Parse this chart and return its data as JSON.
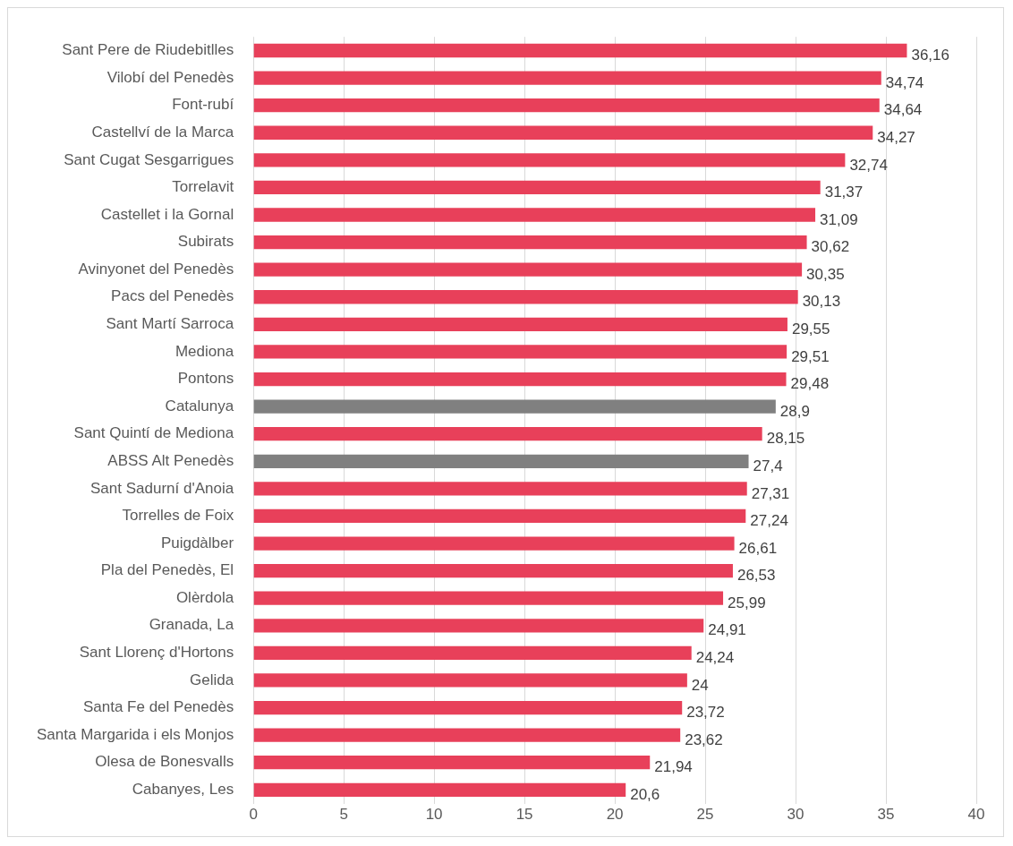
{
  "chart_data": {
    "type": "bar",
    "orientation": "horizontal",
    "categories": [
      "Sant Pere de Riudebitlles",
      "Vilobí del Penedès",
      "Font-rubí",
      "Castellví de la Marca",
      "Sant Cugat Sesgarrigues",
      "Torrelavit",
      "Castellet i la Gornal",
      "Subirats",
      "Avinyonet del Penedès",
      "Pacs del Penedès",
      "Sant Martí Sarroca",
      "Mediona",
      "Pontons",
      "Catalunya",
      "Sant Quintí de Mediona",
      "ABSS Alt Penedès",
      "Sant Sadurní d'Anoia",
      "Torrelles de Foix",
      "Puigdàlber",
      "Pla del Penedès, El",
      "Olèrdola",
      "Granada, La",
      "Sant Llorenç d'Hortons",
      "Gelida",
      "Santa Fe del Penedès",
      "Santa Margarida i els Monjos",
      "Olesa de Bonesvalls",
      "Cabanyes, Les"
    ],
    "values": [
      36.16,
      34.74,
      34.64,
      34.27,
      32.74,
      31.37,
      31.09,
      30.62,
      30.35,
      30.13,
      29.55,
      29.51,
      29.48,
      28.9,
      28.15,
      27.4,
      27.31,
      27.24,
      26.61,
      26.53,
      25.99,
      24.91,
      24.24,
      24,
      23.72,
      23.62,
      21.94,
      20.6
    ],
    "value_labels": [
      "36,16",
      "34,74",
      "34,64",
      "34,27",
      "32,74",
      "31,37",
      "31,09",
      "30,62",
      "30,35",
      "30,13",
      "29,55",
      "29,51",
      "29,48",
      "28,9",
      "28,15",
      "27,4",
      "27,31",
      "27,24",
      "26,61",
      "26,53",
      "25,99",
      "24,91",
      "24,24",
      "24",
      "23,72",
      "23,62",
      "21,94",
      "20,6"
    ],
    "colors": [
      "#e8405a",
      "#e8405a",
      "#e8405a",
      "#e8405a",
      "#e8405a",
      "#e8405a",
      "#e8405a",
      "#e8405a",
      "#e8405a",
      "#e8405a",
      "#e8405a",
      "#e8405a",
      "#e8405a",
      "#808080",
      "#e8405a",
      "#808080",
      "#e8405a",
      "#e8405a",
      "#e8405a",
      "#e8405a",
      "#e8405a",
      "#e8405a",
      "#e8405a",
      "#e8405a",
      "#e8405a",
      "#e8405a",
      "#e8405a",
      "#e8405a"
    ],
    "xlim": [
      0,
      40
    ],
    "xticks": [
      0,
      5,
      10,
      15,
      20,
      25,
      30,
      35,
      40
    ],
    "grid": "x",
    "legend": false
  }
}
